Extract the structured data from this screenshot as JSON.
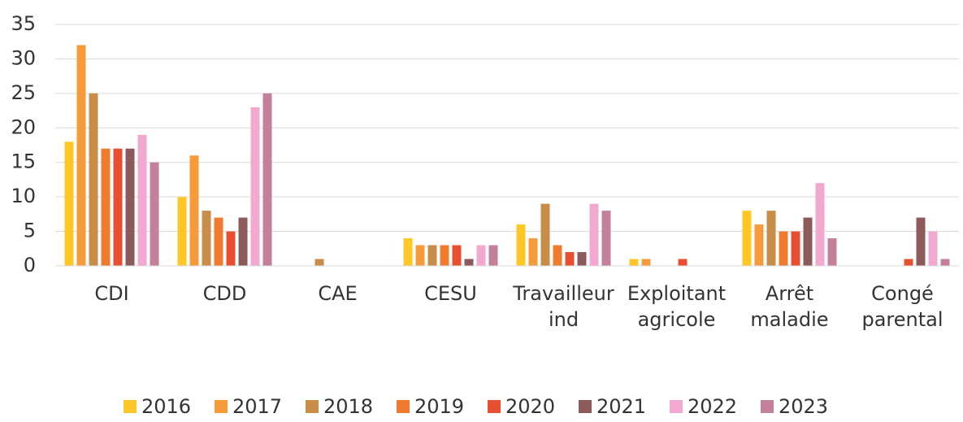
{
  "chart_data": {
    "type": "bar",
    "categories": [
      "CDI",
      "CDD",
      "CAE",
      "CESU",
      "Travailleur ind",
      "Exploitant agricole",
      "Arrêt maladie",
      "Congé parental"
    ],
    "series": [
      {
        "name": "2016",
        "color": "#FFC726",
        "values": [
          18,
          10,
          0,
          4,
          6,
          1,
          8,
          0
        ]
      },
      {
        "name": "2017",
        "color": "#F79A3A",
        "values": [
          32,
          16,
          0,
          3,
          4,
          1,
          6,
          0
        ]
      },
      {
        "name": "2018",
        "color": "#C98D4A",
        "values": [
          25,
          8,
          1,
          3,
          9,
          0,
          8,
          0
        ]
      },
      {
        "name": "2019",
        "color": "#F07B2F",
        "values": [
          17,
          7,
          0,
          3,
          3,
          0,
          5,
          0
        ]
      },
      {
        "name": "2020",
        "color": "#E84F30",
        "values": [
          17,
          5,
          0,
          3,
          2,
          1,
          5,
          1
        ]
      },
      {
        "name": "2021",
        "color": "#8C5A5A",
        "values": [
          17,
          7,
          0,
          1,
          2,
          0,
          7,
          7
        ]
      },
      {
        "name": "2022",
        "color": "#F2A9CF",
        "values": [
          19,
          23,
          0,
          3,
          9,
          0,
          12,
          5
        ]
      },
      {
        "name": "2023",
        "color": "#C47F9A",
        "values": [
          15,
          25,
          0,
          3,
          8,
          0,
          4,
          1
        ]
      }
    ],
    "ylim": [
      0,
      35
    ],
    "yticks": [
      0,
      5,
      10,
      15,
      20,
      25,
      30,
      35
    ],
    "grid": true,
    "legend": "bottom"
  }
}
